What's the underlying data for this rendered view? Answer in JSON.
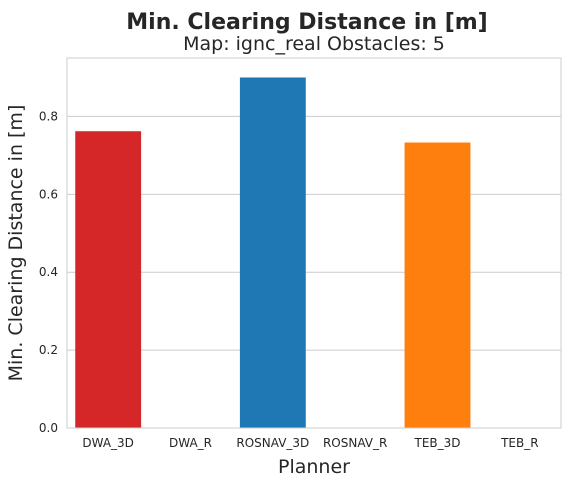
{
  "chart_data": {
    "type": "bar",
    "suptitle": "Min. Clearing Distance in [m]",
    "title": "Map: ignc_real Obstacles: 5",
    "xlabel": "Planner",
    "ylabel": "Min. Clearing Distance in [m]",
    "categories": [
      "DWA_3D",
      "DWA_R",
      "ROSNAV_3D",
      "ROSNAV_R",
      "TEB_3D",
      "TEB_R"
    ],
    "values": [
      0.762,
      0,
      0.9,
      0,
      0.733,
      0
    ],
    "colors": [
      "#d62728",
      "#d62728",
      "#1f77b4",
      "#1f77b4",
      "#ff7f0e",
      "#ff7f0e"
    ],
    "ylim": [
      0,
      0.95
    ],
    "yticks": [
      0.0,
      0.2,
      0.4,
      0.6,
      0.8
    ],
    "ytick_labels": [
      "0.0",
      "0.2",
      "0.4",
      "0.6",
      "0.8"
    ],
    "grid": "horizontal",
    "style": "whitegrid"
  }
}
